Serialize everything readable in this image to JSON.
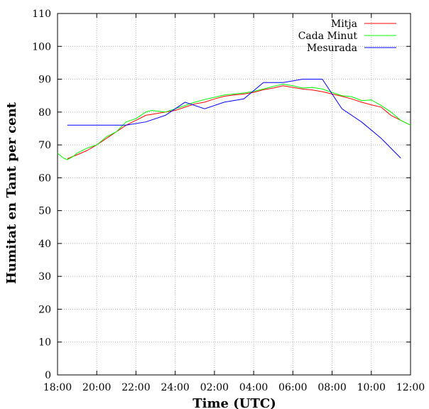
{
  "chart_data": {
    "type": "line",
    "title": "",
    "xlabel": "Time (UTC)",
    "ylabel": "Humitat en Tant per cent",
    "ylim": [
      0,
      110
    ],
    "xlim": [
      0,
      18
    ],
    "grid": true,
    "legend_position": "top-right",
    "y_ticks": [
      0,
      10,
      20,
      30,
      40,
      50,
      60,
      70,
      80,
      90,
      100,
      110
    ],
    "x_ticks": [
      {
        "value": 0,
        "label": "18:00"
      },
      {
        "value": 2,
        "label": "20:00"
      },
      {
        "value": 4,
        "label": "22:00"
      },
      {
        "value": 6,
        "label": "24:00"
      },
      {
        "value": 8,
        "label": "02:00"
      },
      {
        "value": 10,
        "label": "04:00"
      },
      {
        "value": 12,
        "label": "06:00"
      },
      {
        "value": 14,
        "label": "08:00"
      },
      {
        "value": 16,
        "label": "10:00"
      },
      {
        "value": 18,
        "label": "12:00"
      }
    ],
    "series": [
      {
        "name": "Mitja",
        "color": "#ff0000",
        "points": [
          [
            0.5,
            65.8
          ],
          [
            1,
            67
          ],
          [
            1.5,
            68.3
          ],
          [
            2,
            70
          ],
          [
            2.5,
            72
          ],
          [
            3,
            74
          ],
          [
            3.5,
            76
          ],
          [
            4,
            77.5
          ],
          [
            4.5,
            79
          ],
          [
            5,
            79.5
          ],
          [
            5.5,
            80
          ],
          [
            6,
            80.5
          ],
          [
            6.5,
            81.5
          ],
          [
            7,
            82.5
          ],
          [
            7.5,
            83
          ],
          [
            8,
            84
          ],
          [
            8.5,
            84.8
          ],
          [
            9,
            85.2
          ],
          [
            9.5,
            85.5
          ],
          [
            10,
            86
          ],
          [
            10.5,
            86.8
          ],
          [
            11,
            87.3
          ],
          [
            11.5,
            88
          ],
          [
            12,
            87.5
          ],
          [
            12.5,
            87
          ],
          [
            13,
            86.7
          ],
          [
            13.5,
            86.2
          ],
          [
            14,
            85.5
          ],
          [
            14.5,
            84.8
          ],
          [
            15,
            84
          ],
          [
            15.5,
            83
          ],
          [
            16,
            82.2
          ],
          [
            16.5,
            81.5
          ],
          [
            17,
            79
          ],
          [
            17.5,
            77.5
          ],
          [
            18,
            76
          ]
        ]
      },
      {
        "name": "Cada Minut",
        "color": "#00ff00",
        "points": [
          [
            0,
            67.5
          ],
          [
            0.3,
            66
          ],
          [
            0.5,
            65.5
          ],
          [
            0.8,
            66.5
          ],
          [
            1,
            67.5
          ],
          [
            1.5,
            69
          ],
          [
            2,
            70
          ],
          [
            2.5,
            72.5
          ],
          [
            3,
            74
          ],
          [
            3.5,
            77
          ],
          [
            4,
            78
          ],
          [
            4.5,
            80
          ],
          [
            4.8,
            80.5
          ],
          [
            5.2,
            80.2
          ],
          [
            5.5,
            80
          ],
          [
            6,
            81
          ],
          [
            6.5,
            82
          ],
          [
            7,
            83
          ],
          [
            7.5,
            83.8
          ],
          [
            8,
            84.5
          ],
          [
            8.5,
            85.2
          ],
          [
            9,
            85.5
          ],
          [
            9.5,
            85.8
          ],
          [
            10,
            86.3
          ],
          [
            10.5,
            87
          ],
          [
            11,
            87.8
          ],
          [
            11.5,
            88.5
          ],
          [
            12,
            88
          ],
          [
            12.5,
            87.3
          ],
          [
            13,
            87.5
          ],
          [
            13.5,
            87
          ],
          [
            14,
            86
          ],
          [
            14.5,
            85
          ],
          [
            15,
            84.7
          ],
          [
            15.5,
            83.5
          ],
          [
            16,
            83.7
          ],
          [
            16.5,
            82
          ],
          [
            17,
            80
          ],
          [
            17.5,
            77.5
          ],
          [
            18,
            76
          ]
        ]
      },
      {
        "name": "Mesurada",
        "color": "#0000ff",
        "points": [
          [
            0.5,
            76
          ],
          [
            1.5,
            76
          ],
          [
            2.5,
            76
          ],
          [
            3.5,
            76
          ],
          [
            4.5,
            77
          ],
          [
            5.5,
            79
          ],
          [
            6.5,
            83
          ],
          [
            7.5,
            81
          ],
          [
            8.5,
            83
          ],
          [
            9.5,
            84
          ],
          [
            10.5,
            89
          ],
          [
            11.5,
            89
          ],
          [
            12.5,
            90
          ],
          [
            13.5,
            90
          ],
          [
            14.5,
            81
          ],
          [
            15.5,
            77
          ],
          [
            16.5,
            72
          ],
          [
            17.5,
            66
          ]
        ]
      }
    ]
  }
}
